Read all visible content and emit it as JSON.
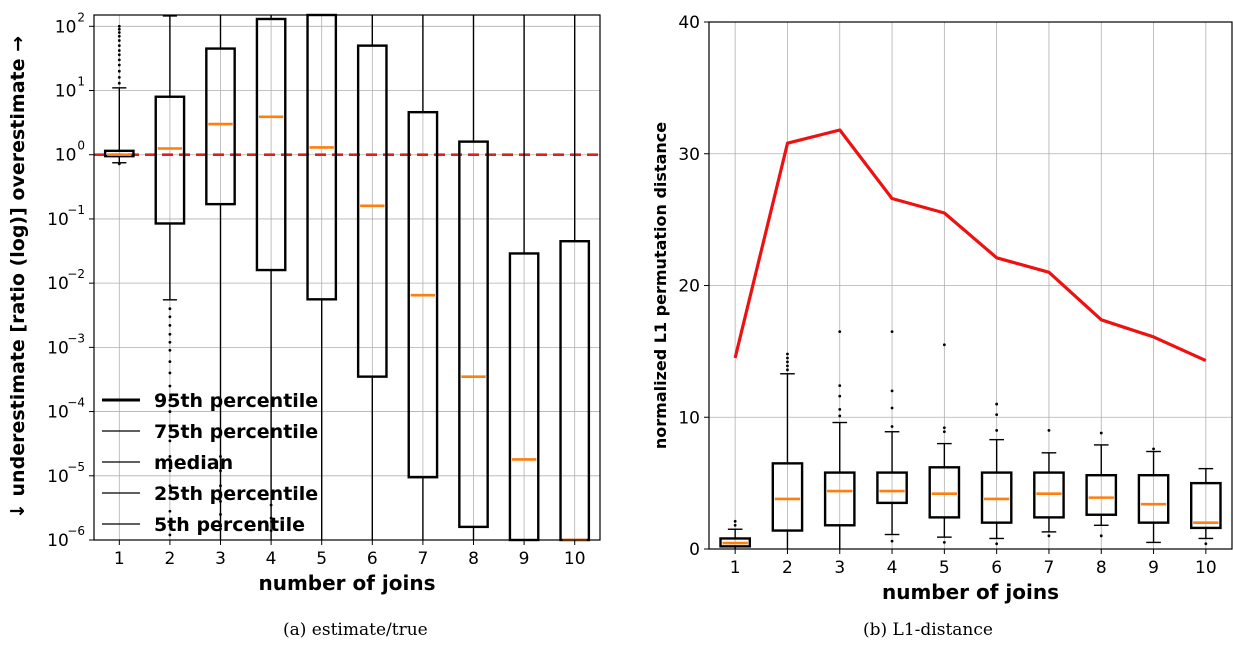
{
  "captions": {
    "a": "(a) estimate/true",
    "b": "(b) L1-distance"
  },
  "colors": {
    "box": "#000000",
    "median": "#ff7f0e",
    "reference": "#e0201c",
    "mean_line": "#ee1111",
    "grid": "#b0b0b0"
  },
  "chart_data": [
    {
      "type": "boxplot",
      "yscale": "log",
      "xlabel": "number of joins",
      "ylabel": "↓ underestimate [ratio (log)] overestimate →",
      "xlim": [
        0.5,
        10.5
      ],
      "ylim": [
        1e-06,
        150
      ],
      "grid": true,
      "categories": [
        "1",
        "2",
        "3",
        "4",
        "5",
        "6",
        "7",
        "8",
        "9",
        "10"
      ],
      "yticks": [
        {
          "value": 1e-06,
          "base": "10",
          "exp": "−6"
        },
        {
          "value": 1e-05,
          "base": "10",
          "exp": "−5"
        },
        {
          "value": 0.0001,
          "base": "10",
          "exp": "−4"
        },
        {
          "value": 0.001,
          "base": "10",
          "exp": "−3"
        },
        {
          "value": 0.01,
          "base": "10",
          "exp": "−2"
        },
        {
          "value": 0.1,
          "base": "10",
          "exp": "−1"
        },
        {
          "value": 1,
          "base": "10",
          "exp": "0"
        },
        {
          "value": 10,
          "base": "10",
          "exp": "1"
        },
        {
          "value": 100,
          "base": "10",
          "exp": "2"
        }
      ],
      "reference_line": {
        "y": 1,
        "style": "dashed"
      },
      "boxes": [
        {
          "x": 1,
          "q1": 0.95,
          "median": 1.0,
          "q3": 1.15,
          "whislo": 0.75,
          "whishi": 11,
          "outliers_hi": [
            13,
            16,
            20,
            25,
            30,
            36,
            42,
            50,
            60,
            70,
            80,
            90,
            100
          ],
          "outliers_lo": [
            0.72
          ]
        },
        {
          "x": 2,
          "q1": 0.085,
          "median": 1.25,
          "q3": 8,
          "whislo": 0.0055,
          "whishi": 145,
          "outliers_lo": [
            0.004,
            0.003,
            0.0022,
            0.0016,
            0.0012,
            0.0009,
            0.0006,
            0.0004,
            0.00025,
            0.00015,
            0.0001,
            6e-05,
            3.5e-05,
            2e-05,
            1.2e-05,
            7e-06,
            4.5e-06,
            2.8e-06,
            1.7e-06,
            1.2e-06
          ]
        },
        {
          "x": 3,
          "q1": 0.17,
          "median": 3.0,
          "q3": 45,
          "whislo": 1e-06,
          "whishi": 150,
          "outliers_lo": [
            2e-05,
            1.2e-05,
            7e-06,
            4e-06,
            2.5e-06,
            1.5e-06
          ]
        },
        {
          "x": 4,
          "q1": 0.016,
          "median": 3.9,
          "q3": 130,
          "whislo": 1e-06,
          "whishi": 150,
          "outliers_lo": [
            3.5e-06,
            2.2e-06,
            1.4e-06
          ]
        },
        {
          "x": 5,
          "q1": 0.0056,
          "median": 1.3,
          "q3": 150,
          "whislo": 1e-06,
          "whishi": 150
        },
        {
          "x": 6,
          "q1": 0.00035,
          "median": 0.16,
          "q3": 50,
          "whislo": 1e-06,
          "whishi": 150
        },
        {
          "x": 7,
          "q1": 9.5e-06,
          "median": 0.0065,
          "q3": 4.6,
          "whislo": 1e-06,
          "whishi": 150
        },
        {
          "x": 8,
          "q1": 1.6e-06,
          "median": 0.00035,
          "q3": 1.6,
          "whislo": 1e-06,
          "whishi": 150
        },
        {
          "x": 9,
          "q1": 1e-06,
          "median": 1.8e-05,
          "q3": 0.029,
          "whislo": 1e-06,
          "whishi": 150
        },
        {
          "x": 10,
          "q1": 1e-06,
          "median": 1e-06,
          "q3": 0.045,
          "whislo": 1e-06,
          "whishi": 150
        }
      ],
      "legend": {
        "placement": "lower-left",
        "entries": [
          {
            "label": "95th percentile",
            "weight": "thick"
          },
          {
            "label": "75th percentile",
            "weight": "thin"
          },
          {
            "label": "median",
            "weight": "thin"
          },
          {
            "label": "25th percentile",
            "weight": "thin"
          },
          {
            "label": "5th percentile",
            "weight": "thin"
          }
        ]
      }
    },
    {
      "type": "boxplot",
      "yscale": "linear",
      "xlabel": "number of joins",
      "ylabel": "normalized L1 permutation distance",
      "xlim": [
        0.5,
        10.5
      ],
      "ylim": [
        0,
        40
      ],
      "grid": true,
      "categories": [
        "1",
        "2",
        "3",
        "4",
        "5",
        "6",
        "7",
        "8",
        "9",
        "10"
      ],
      "yticks": [
        0,
        10,
        20,
        30,
        40
      ],
      "line": {
        "x": [
          1,
          2,
          3,
          4,
          5,
          6,
          7,
          8,
          9,
          10
        ],
        "y": [
          14.5,
          30.8,
          31.8,
          26.6,
          25.5,
          22.1,
          21.0,
          17.4,
          16.1,
          14.3
        ]
      },
      "boxes": [
        {
          "x": 1,
          "q1": 0.2,
          "median": 0.45,
          "q3": 0.8,
          "whislo": 0,
          "whishi": 1.5,
          "outliers_hi": [
            1.8,
            2.1
          ]
        },
        {
          "x": 2,
          "q1": 1.4,
          "median": 3.8,
          "q3": 6.5,
          "whislo": 0,
          "whishi": 13.3,
          "outliers_hi": [
            13.6,
            13.9,
            14.2,
            14.5,
            14.8
          ]
        },
        {
          "x": 3,
          "q1": 1.8,
          "median": 4.4,
          "q3": 5.8,
          "whislo": 0,
          "whishi": 9.6,
          "outliers_hi": [
            10.1,
            10.6,
            11.6,
            12.4,
            16.5
          ]
        },
        {
          "x": 4,
          "q1": 3.5,
          "median": 4.4,
          "q3": 5.8,
          "whislo": 1.1,
          "whishi": 8.9,
          "outliers_hi": [
            9.3,
            10.7,
            12.0,
            16.5
          ],
          "outliers_lo": [
            0.6
          ]
        },
        {
          "x": 5,
          "q1": 2.4,
          "median": 4.2,
          "q3": 6.2,
          "whislo": 0.9,
          "whishi": 8.0,
          "outliers_hi": [
            8.9,
            9.2,
            15.5
          ],
          "outliers_lo": [
            0.5
          ]
        },
        {
          "x": 6,
          "q1": 2.0,
          "median": 3.8,
          "q3": 5.8,
          "whislo": 0.8,
          "whishi": 8.3,
          "outliers_hi": [
            9.0,
            10.2,
            11.0
          ],
          "outliers_lo": [
            0.4
          ]
        },
        {
          "x": 7,
          "q1": 2.4,
          "median": 4.2,
          "q3": 5.8,
          "whislo": 1.3,
          "whishi": 7.3,
          "outliers_hi": [
            9.0
          ],
          "outliers_lo": [
            1.0
          ]
        },
        {
          "x": 8,
          "q1": 2.6,
          "median": 3.9,
          "q3": 5.6,
          "whislo": 1.8,
          "whishi": 7.9,
          "outliers_hi": [
            8.8
          ],
          "outliers_lo": [
            1.0
          ]
        },
        {
          "x": 9,
          "q1": 2.0,
          "median": 3.4,
          "q3": 5.6,
          "whislo": 0.5,
          "whishi": 7.4,
          "outliers_hi": [
            7.6
          ]
        },
        {
          "x": 10,
          "q1": 1.6,
          "median": 2.0,
          "q3": 5.0,
          "whislo": 0.8,
          "whishi": 6.1,
          "outliers_lo": [
            0.4
          ]
        }
      ]
    }
  ]
}
